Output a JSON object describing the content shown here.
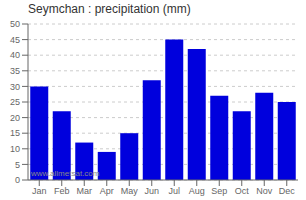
{
  "chart_data": {
    "type": "bar",
    "title": "Seymchan : precipitation (mm)",
    "categories": [
      "Jan",
      "Feb",
      "Mar",
      "Apr",
      "May",
      "Jun",
      "Jul",
      "Aug",
      "Sep",
      "Oct",
      "Nov",
      "Dec"
    ],
    "values": [
      30,
      22,
      12,
      9,
      15,
      32,
      45,
      42,
      27,
      22,
      28,
      25
    ],
    "color": "#0000dd",
    "ylim": [
      0,
      50
    ],
    "yticks": [
      0,
      5,
      10,
      15,
      20,
      25,
      30,
      35,
      40,
      45,
      50
    ],
    "grid": true,
    "annotations": [
      "www.allmetsat.com"
    ]
  }
}
